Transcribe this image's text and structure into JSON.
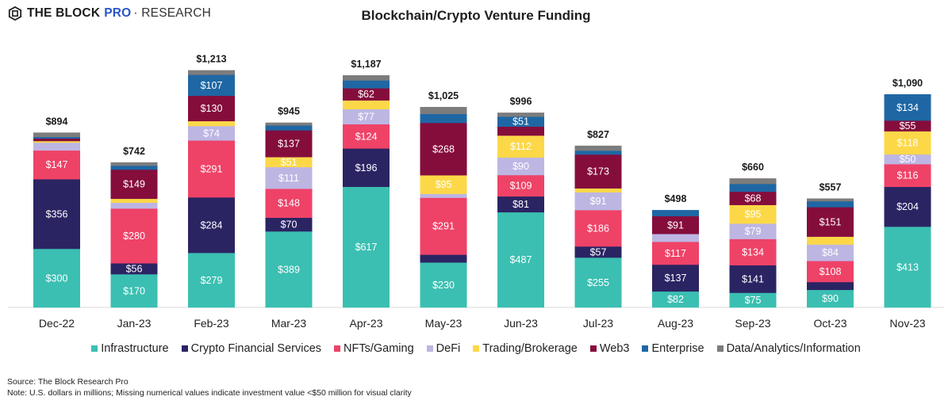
{
  "brand": {
    "part1": "THE BLOCK",
    "part2": "PRO",
    "part3": "· RESEARCH",
    "logo_icon": "block-cube-icon"
  },
  "footer": {
    "source": "Source: The Block Research Pro",
    "note": "Note: U.S. dollars in millions; Missing numerical values indicate investment value <$50 million for visual clarity"
  },
  "chart_data": {
    "type": "bar",
    "stacked": true,
    "title": "Blockchain/Crypto Venture Funding",
    "xlabel": "",
    "ylabel": "U.S. dollars in millions",
    "ylim": [
      0,
      1300
    ],
    "grid": false,
    "legend_position": "bottom",
    "label_threshold": 50,
    "currency_prefix": "$",
    "categories": [
      "Dec-22",
      "Jan-23",
      "Feb-23",
      "Mar-23",
      "Apr-23",
      "May-23",
      "Jun-23",
      "Jul-23",
      "Aug-23",
      "Sep-23",
      "Oct-23",
      "Nov-23"
    ],
    "totals": [
      894,
      742,
      1213,
      945,
      1187,
      1025,
      996,
      827,
      498,
      660,
      557,
      1090
    ],
    "series": [
      {
        "name": "Infrastructure",
        "color": "#3bbfb2",
        "values": [
          300,
          170,
          279,
          389,
          617,
          230,
          487,
          255,
          82,
          75,
          90,
          413
        ]
      },
      {
        "name": "Crypto Financial Services",
        "color": "#2b2463",
        "values": [
          356,
          56,
          284,
          70,
          196,
          40,
          81,
          57,
          137,
          141,
          40,
          204
        ]
      },
      {
        "name": "NFTs/Gaming",
        "color": "#ef4267",
        "values": [
          147,
          280,
          291,
          148,
          124,
          291,
          109,
          186,
          117,
          134,
          108,
          116
        ]
      },
      {
        "name": "DeFi",
        "color": "#bdb6e3",
        "values": [
          40,
          30,
          74,
          111,
          77,
          20,
          90,
          91,
          40,
          79,
          84,
          50
        ]
      },
      {
        "name": "Trading/Brokerage",
        "color": "#fcd848",
        "values": [
          8,
          20,
          25,
          51,
          45,
          95,
          112,
          20,
          0,
          95,
          40,
          118
        ]
      },
      {
        "name": "Web3",
        "color": "#850d3c",
        "values": [
          13,
          149,
          130,
          137,
          62,
          268,
          46,
          173,
          91,
          68,
          151,
          55
        ]
      },
      {
        "name": "Enterprise",
        "color": "#1f67a4",
        "values": [
          8,
          20,
          107,
          25,
          40,
          46,
          51,
          20,
          31,
          40,
          30,
          134
        ]
      },
      {
        "name": "Data/Analytics/Information",
        "color": "#7c7c7c",
        "values": [
          22,
          17,
          23,
          14,
          26,
          35,
          20,
          25,
          0,
          28,
          14,
          0
        ]
      }
    ]
  }
}
